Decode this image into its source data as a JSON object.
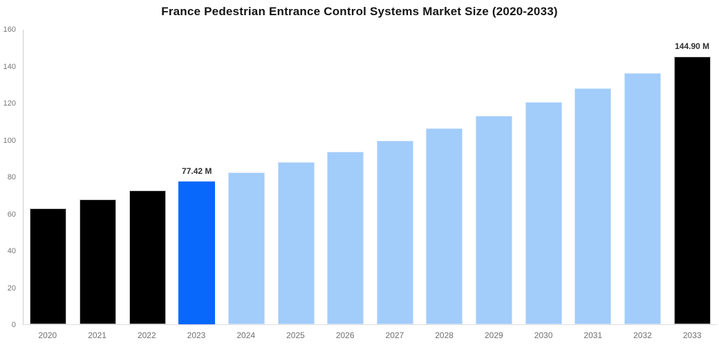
{
  "page": {
    "background": "#ffffff"
  },
  "chart_data": {
    "type": "bar",
    "title": "France Pedestrian Entrance Control Systems Market Size (2020-2033)",
    "xlabel": "",
    "ylabel": "",
    "categories": [
      "2020",
      "2021",
      "2022",
      "2023",
      "2024",
      "2025",
      "2026",
      "2027",
      "2028",
      "2029",
      "2030",
      "2031",
      "2032",
      "2033"
    ],
    "values": [
      62.8,
      67.7,
      72.4,
      77.42,
      82.4,
      87.8,
      93.4,
      99.5,
      106.0,
      112.9,
      120.3,
      128.0,
      136.2,
      144.9
    ],
    "unit": "M",
    "ylim": [
      0,
      160
    ],
    "yticks": [
      0,
      20,
      40,
      60,
      80,
      100,
      120,
      140,
      160
    ],
    "grid": false,
    "legend": "none",
    "bar_roles": [
      "historical",
      "historical",
      "historical",
      "highlight",
      "forecast",
      "forecast",
      "forecast",
      "forecast",
      "forecast",
      "forecast",
      "forecast",
      "forecast",
      "forecast",
      "endpoint"
    ],
    "role_colors": {
      "historical": {
        "fill": "#000000",
        "border": "#c4c4c4"
      },
      "highlight": {
        "fill": "#0768fb",
        "border": "#0768fb"
      },
      "forecast": {
        "fill": "#a2ccfa",
        "border": "#cde4fc"
      },
      "endpoint": {
        "fill": "#000000",
        "border": "#c4c4c4"
      }
    },
    "data_labels": [
      {
        "index": 3,
        "text": "77.42 M"
      },
      {
        "index": 13,
        "text": "144.90 M"
      }
    ],
    "axis": {
      "line_color": "#cccccc",
      "baseline_color": "#dddddd",
      "ytick_text_color": "#757575",
      "xtick_text_color": "#6e6e6e"
    }
  }
}
